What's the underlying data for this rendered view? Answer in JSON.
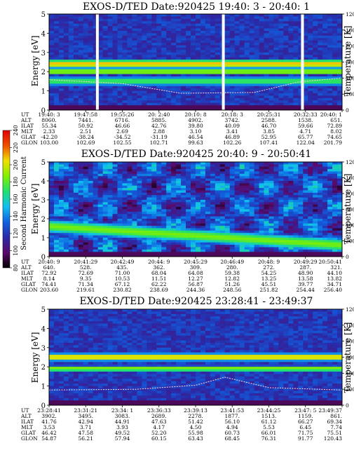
{
  "chart_data": [
    {
      "type": "heatmap",
      "title": "EXOS-D/TED   Date:920425  19:40: 3 - 20:40: 1",
      "ylabel": "Energy [eV]",
      "y2label": "Temperature [K]",
      "ylim": [
        0,
        5
      ],
      "y2lim": [
        0,
        12000
      ],
      "yticks": [
        "0",
        "1",
        "2",
        "3",
        "4",
        "5"
      ],
      "y2ticks": [
        "0",
        "2000",
        "4000",
        "6000",
        "8000",
        "10000",
        "12000"
      ],
      "data_gaps_at_columns": [
        0.16,
        0.59,
        0.86
      ],
      "bands": [
        {
          "energy": 2.4,
          "level": 210,
          "width": 0.35
        },
        {
          "energy": 2.0,
          "level": 195,
          "width": 0.25
        },
        {
          "energy": 1.5,
          "level": 175,
          "width": 0.4
        }
      ],
      "temperature_trace": {
        "x": [
          0,
          0.25,
          0.45,
          0.7,
          0.85,
          1.0
        ],
        "y": [
          3800,
          3300,
          2100,
          2200,
          3500,
          4000
        ]
      },
      "orbit_labels": [
        "UT",
        "ALT",
        "ILAT",
        "MLT",
        "GLAT",
        "GLON"
      ],
      "orbit_table": [
        [
          "19:40: 3",
          "8060.",
          "55.34",
          "2.33",
          "-42.20",
          "103.00"
        ],
        [
          "19:47:58",
          "7441.",
          "50.92",
          "2.51",
          "-38.24",
          "102.69"
        ],
        [
          "19:55:26",
          "6716.",
          "46.66",
          "2.69",
          "-34.52",
          "102.55"
        ],
        [
          "20: 2:40",
          "5885.",
          "42.76",
          "2.88",
          "-31.19",
          "102.71"
        ],
        [
          "20:10: 8",
          "4902.",
          "39.80",
          "3.10",
          "46.54",
          "99.63"
        ],
        [
          "20:18: 3",
          "3742.",
          "40.09",
          "3.41",
          "46.89",
          "102.26"
        ],
        [
          "20:25:31",
          "2588.",
          "46.70",
          "3.85",
          "52.95",
          "107.41"
        ],
        [
          "20:32:33",
          "1538.",
          "59.66",
          "4.71",
          "65.77",
          "122.04"
        ],
        [
          "20:40: 1",
          "651.",
          "72.89",
          "8.02",
          "74.65",
          "201.79"
        ]
      ]
    },
    {
      "type": "heatmap",
      "title": "EXOS-D/TED   Date:920425  20:40: 9 - 20:50:41",
      "ylabel": "Energy [eV]",
      "y2label": "Temperature [K]",
      "ylim": [
        0,
        5
      ],
      "y2lim": [
        0,
        12000
      ],
      "yticks": [
        "0",
        "1",
        "2",
        "3",
        "4",
        "5"
      ],
      "y2ticks": [
        "0",
        "2000",
        "4000",
        "6000",
        "8000",
        "10000",
        "12000"
      ],
      "bands": [
        {
          "energy": 1.0,
          "level": 185,
          "width": 0.6
        }
      ],
      "orbit_labels": [
        "UT",
        "ALT",
        "ILAT",
        "MLT",
        "GLAT",
        "GLON"
      ],
      "orbit_table": [
        [
          "20:40: 9",
          "640.",
          "72.92",
          "8.14",
          "74.41",
          "203.60"
        ],
        [
          "20:41:29",
          "528.",
          "72.69",
          "9.35",
          "71.34",
          "219.61"
        ],
        [
          "20:42:49",
          "435.",
          "71.00",
          "10.53",
          "67.12",
          "230.82"
        ],
        [
          "20:44: 9",
          "362.",
          "68.04",
          "11.51",
          "62.22",
          "238.69"
        ],
        [
          "20:45:29",
          "309.",
          "64.08",
          "12.27",
          "56.87",
          "244.36"
        ],
        [
          "20:46:49",
          "280.",
          "59.38",
          "12.82",
          "51.26",
          "248.56"
        ],
        [
          "20:48: 9",
          "272.",
          "54.25",
          "13.25",
          "45.51",
          "251.82"
        ],
        [
          "20:49:29",
          "287.",
          "48.90",
          "13.58",
          "39.77",
          "254.44"
        ],
        [
          "20:50:41",
          "321.",
          "44.10",
          "13.82",
          "34.71",
          "256.40"
        ]
      ]
    },
    {
      "type": "heatmap",
      "title": "EXOS-D/TED   Date:920425  23:28:41 - 23:49:37",
      "ylabel": "Energy [eV]",
      "y2label": "Temperature [K]",
      "ylim": [
        0,
        5
      ],
      "y2lim": [
        0,
        12000
      ],
      "yticks": [
        "0",
        "1",
        "2",
        "3",
        "4",
        "5"
      ],
      "y2ticks": [
        "0",
        "2000",
        "4000",
        "6000",
        "8000",
        "10000",
        "12000"
      ],
      "bands": [
        {
          "energy": 2.5,
          "level": 210,
          "width": 0.3
        },
        {
          "energy": 1.9,
          "level": 190,
          "width": 0.25
        }
      ],
      "temperature_trace": {
        "x": [
          0,
          0.3,
          0.5,
          0.6,
          0.75,
          1.0
        ],
        "y": [
          1900,
          2000,
          2500,
          3500,
          2200,
          1900
        ]
      },
      "orbit_labels": [
        "UT",
        "ALT",
        "ILAT",
        "MLT",
        "GLAT",
        "GLON"
      ],
      "orbit_table": [
        [
          "23:28:41",
          "3902.",
          "41.76",
          "3.53",
          "46.42",
          "54.87"
        ],
        [
          "23:31:21",
          "3495.",
          "42.94",
          "3.71",
          "47.58",
          "56.21"
        ],
        [
          "23:34: 1",
          "3083.",
          "44.91",
          "3.93",
          "49.52",
          "57.94"
        ],
        [
          "23:36:33",
          "2689.",
          "47.63",
          "4.17",
          "52.20",
          "60.15"
        ],
        [
          "23:39:13",
          "2278.",
          "51.42",
          "4.50",
          "55.98",
          "63.43"
        ],
        [
          "23:41:53",
          "1877.",
          "56.10",
          "4.94",
          "60.73",
          "68.45"
        ],
        [
          "23:44:25",
          "1513.",
          "61.12",
          "5.53",
          "66.01",
          "76.31"
        ],
        [
          "23:47: 5",
          "1159.",
          "66.27",
          "6.45",
          "71.75",
          "91.77"
        ],
        [
          "23:49:37",
          "861.",
          "69.34",
          "7.74",
          "75.51",
          "120.43"
        ]
      ]
    }
  ],
  "colorbar": {
    "label": "Second Harmonic Current",
    "ticks": [
      "80",
      "100",
      "120",
      "140",
      "160",
      "180",
      "200",
      "220",
      "240"
    ],
    "colors": [
      "#000000",
      "#5a0a6a",
      "#2a2aa8",
      "#1060e0",
      "#10c0f0",
      "#20e070",
      "#80f000",
      "#f0e000",
      "#f05000",
      "#e00000"
    ]
  }
}
